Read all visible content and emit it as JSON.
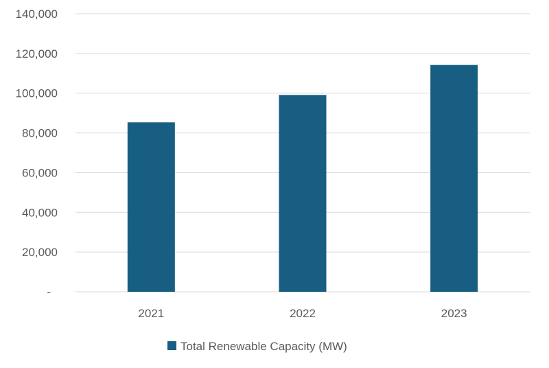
{
  "chart_data": {
    "type": "bar",
    "categories": [
      "2021",
      "2022",
      "2023"
    ],
    "series": [
      {
        "name": "Total Renewable Capacity (MW)",
        "values": [
          85300,
          99100,
          114200
        ],
        "color": "#175e82"
      }
    ],
    "ylim": [
      0,
      140000
    ],
    "y_ticks": [
      0,
      20000,
      40000,
      60000,
      80000,
      100000,
      120000,
      140000
    ],
    "y_tick_labels": [
      "-",
      "20,000",
      "40,000",
      "60,000",
      "80,000",
      "100,000",
      "120,000",
      "140,000"
    ],
    "grid": true,
    "legend_position": "bottom",
    "title": "",
    "xlabel": "",
    "ylabel": ""
  }
}
